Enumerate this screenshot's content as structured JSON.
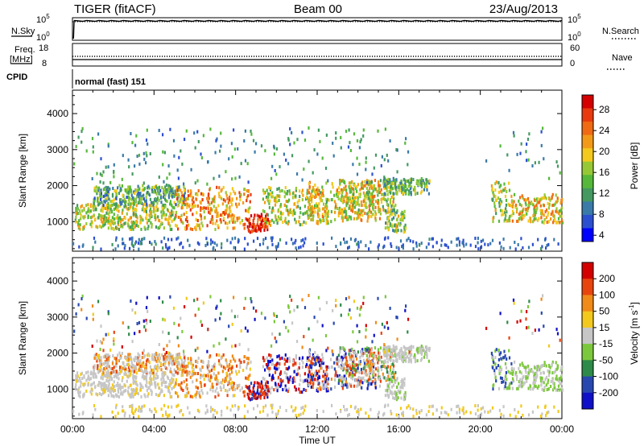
{
  "header": {
    "left": "TIGER (fitACF)",
    "center": "Beam 00",
    "right": "23/Aug/2013"
  },
  "nsky_panel": {
    "left_label": "N.Sky",
    "right_label": "N.Search",
    "ticks_left": [
      "10^5",
      "10^0"
    ],
    "ticks_right": [
      "10^5",
      "10^0"
    ]
  },
  "freq_panel": {
    "left_label_1": "Freq.",
    "left_label_2": "[MHz]",
    "right_label": "Nave",
    "ticks_left": [
      "18",
      "8"
    ],
    "ticks_right": [
      "60",
      "0"
    ]
  },
  "cpid": {
    "label": "CPID",
    "text": "normal (fast) 151"
  },
  "x_axis": {
    "label": "Time UT",
    "ticks": [
      "00:00",
      "04:00",
      "08:00",
      "12:00",
      "16:00",
      "20:00",
      "00:00"
    ]
  },
  "chart_data": [
    {
      "type": "heatmap",
      "ylabel": "Slant Range [km]",
      "y_ticks": [
        1000,
        2000,
        3000,
        4000
      ],
      "ylim": [
        180,
        4650
      ],
      "xlim": [
        0,
        24
      ],
      "colorbar": {
        "label": "Power [dB]",
        "ticks": [
          "28",
          "24",
          "20",
          "16",
          "12",
          "8",
          "4"
        ],
        "range": [
          0,
          30
        ],
        "colors": [
          "#0000ff",
          "#2c4fd0",
          "#3a7aa8",
          "#449960",
          "#55b83a",
          "#96c836",
          "#f2c91c",
          "#f29a18",
          "#ef6a12",
          "#e83a0e",
          "#d40000"
        ]
      }
    },
    {
      "type": "heatmap",
      "ylabel": "Slant Range [km]",
      "y_ticks": [
        1000,
        2000,
        3000,
        4000
      ],
      "ylim": [
        180,
        4650
      ],
      "xlim": [
        0,
        24
      ],
      "colorbar": {
        "label": "Velocity [m s^-1]",
        "ticks": [
          "200",
          "100",
          "50",
          "15",
          "-15",
          "-50",
          "-100",
          "-200"
        ],
        "colors": [
          "#1010c8",
          "#2848b0",
          "#2e8a48",
          "#7cc83c",
          "#c6c6c6",
          "#f2c91c",
          "#f08a18",
          "#e8440e",
          "#d40000"
        ]
      }
    }
  ]
}
